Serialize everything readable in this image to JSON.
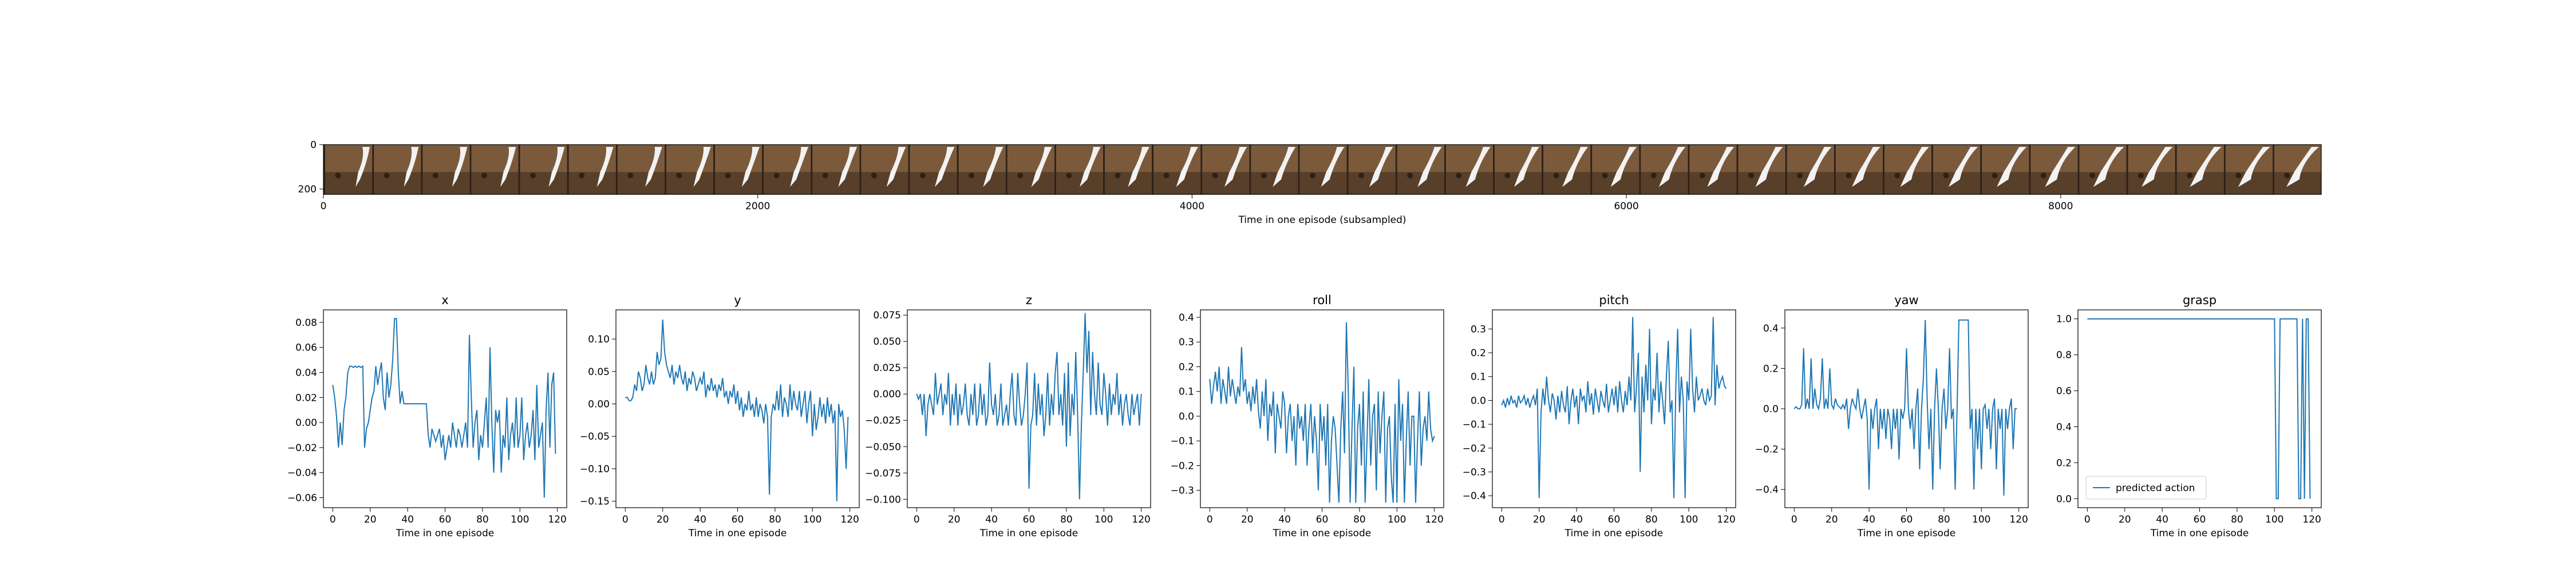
{
  "frame_strip": {
    "xlabel": "Time in one episode (subsampled)",
    "x_ticks": [
      0,
      2000,
      4000,
      6000,
      8000
    ],
    "y_ticks": [
      0,
      200
    ],
    "x_range": [
      0,
      9200
    ],
    "y_range": [
      0,
      224
    ],
    "frame_count": 41,
    "frame_colors": {
      "wood": "#7b5a3b",
      "wood_dark": "#4a3322",
      "arm": "#f2f2f2",
      "shadow": "#2e2118"
    }
  },
  "line_color": "#1f77b4",
  "chart_data": [
    {
      "type": "line",
      "title": "x",
      "xlabel": "Time in one episode",
      "xlim": [
        -5,
        125
      ],
      "ylim": [
        -0.068,
        0.09
      ],
      "x_ticks": [
        0,
        20,
        40,
        60,
        80,
        100,
        120
      ],
      "y_ticks": [
        0.08,
        0.06,
        0.04,
        0.02,
        0.0,
        -0.02,
        -0.04,
        -0.06
      ],
      "y_tick_labels": [
        "0.08",
        "0.06",
        "0.04",
        "0.02",
        "0.00",
        "−0.02",
        "−0.04",
        "−0.06"
      ],
      "values": [
        0.03,
        0.02,
        0.005,
        -0.02,
        0.0,
        -0.018,
        0.01,
        0.02,
        0.04,
        0.045,
        0.045,
        0.044,
        0.045,
        0.044,
        0.045,
        0.044,
        0.045,
        -0.02,
        -0.005,
        0.0,
        0.01,
        0.02,
        0.025,
        0.045,
        0.03,
        0.04,
        0.048,
        0.02,
        0.01,
        0.04,
        0.02,
        0.03,
        0.05,
        0.083,
        0.083,
        0.04,
        0.015,
        0.025,
        0.015,
        0.015,
        0.015,
        0.015,
        0.015,
        0.015,
        0.015,
        0.015,
        0.015,
        0.015,
        0.015,
        0.015,
        0.015,
        -0.01,
        -0.02,
        -0.005,
        -0.01,
        -0.015,
        -0.01,
        -0.005,
        -0.02,
        -0.01,
        -0.03,
        -0.02,
        -0.01,
        -0.02,
        0.0,
        -0.01,
        -0.02,
        -0.005,
        -0.01,
        -0.02,
        -0.01,
        0.0,
        -0.02,
        0.07,
        0.02,
        -0.02,
        0.0,
        0.01,
        -0.03,
        -0.01,
        -0.02,
        0.0,
        0.02,
        -0.02,
        0.06,
        0.0,
        -0.04,
        0.01,
        0.0,
        0.01,
        -0.04,
        -0.01,
        -0.02,
        0.02,
        -0.03,
        -0.01,
        0.0,
        -0.02,
        0.02,
        -0.02,
        -0.01,
        0.02,
        -0.03,
        -0.01,
        0.0,
        -0.02,
        -0.01,
        0.01,
        -0.03,
        0.03,
        -0.02,
        -0.01,
        0.0,
        -0.06,
        0.01,
        0.04,
        -0.02,
        0.03,
        0.04,
        -0.025
      ]
    },
    {
      "type": "line",
      "title": "y",
      "xlabel": "Time in one episode",
      "xlim": [
        -5,
        125
      ],
      "ylim": [
        -0.16,
        0.145
      ],
      "x_ticks": [
        0,
        20,
        40,
        60,
        80,
        100,
        120
      ],
      "y_ticks": [
        0.1,
        0.05,
        0.0,
        -0.05,
        -0.1,
        -0.15
      ],
      "y_tick_labels": [
        "0.10",
        "0.05",
        "0.00",
        "−0.05",
        "−0.10",
        "−0.15"
      ],
      "values": [
        0.01,
        0.01,
        0.005,
        0.005,
        0.01,
        0.03,
        0.02,
        0.05,
        0.04,
        0.02,
        0.03,
        0.06,
        0.04,
        0.03,
        0.05,
        0.03,
        0.04,
        0.08,
        0.06,
        0.07,
        0.13,
        0.08,
        0.06,
        0.05,
        0.04,
        0.06,
        0.03,
        0.05,
        0.04,
        0.06,
        0.04,
        0.03,
        0.05,
        0.02,
        0.04,
        0.03,
        0.05,
        0.04,
        0.02,
        0.03,
        0.04,
        0.03,
        0.05,
        0.01,
        0.03,
        0.02,
        0.04,
        0.02,
        0.03,
        0.01,
        0.03,
        0.02,
        0.04,
        0.01,
        0.02,
        0.0,
        0.02,
        0.01,
        0.03,
        0.0,
        0.02,
        -0.01,
        0.01,
        -0.02,
        0.0,
        -0.01,
        0.02,
        -0.01,
        0.0,
        -0.02,
        0.01,
        -0.02,
        0.0,
        -0.01,
        -0.03,
        0.0,
        -0.02,
        -0.14,
        -0.02,
        0.0,
        -0.01,
        0.02,
        -0.01,
        0.03,
        -0.02,
        0.01,
        0.0,
        -0.02,
        0.03,
        -0.01,
        0.02,
        0.0,
        -0.01,
        0.02,
        -0.02,
        0.0,
        0.02,
        -0.03,
        0.0,
        0.02,
        -0.05,
        0.0,
        -0.04,
        -0.02,
        0.01,
        -0.02,
        0.0,
        -0.03,
        0.01,
        -0.02,
        0.0,
        -0.03,
        -0.01,
        -0.15,
        0.0,
        -0.02,
        -0.01,
        -0.04,
        -0.1,
        -0.02
      ]
    },
    {
      "type": "line",
      "title": "z",
      "xlabel": "Time in one episode",
      "xlim": [
        -5,
        125
      ],
      "ylim": [
        -0.108,
        0.08
      ],
      "x_ticks": [
        0,
        20,
        40,
        60,
        80,
        100,
        120
      ],
      "y_ticks": [
        0.075,
        0.05,
        0.025,
        0.0,
        -0.025,
        -0.05,
        -0.075,
        -0.1
      ],
      "y_tick_labels": [
        "0.075",
        "0.050",
        "0.025",
        "0.000",
        "−0.025",
        "−0.050",
        "−0.075",
        "−0.100"
      ],
      "values": [
        0.0,
        -0.005,
        0.0,
        -0.02,
        0.0,
        -0.04,
        -0.01,
        0.0,
        -0.01,
        -0.02,
        0.02,
        -0.01,
        0.0,
        0.01,
        -0.02,
        0.0,
        -0.01,
        0.02,
        -0.03,
        0.0,
        -0.02,
        0.01,
        -0.03,
        0.0,
        -0.02,
        -0.01,
        0.01,
        -0.02,
        -0.03,
        0.0,
        -0.02,
        0.01,
        -0.03,
        -0.02,
        0.01,
        -0.02,
        0.0,
        -0.03,
        -0.02,
        0.03,
        -0.01,
        -0.02,
        0.0,
        -0.03,
        -0.02,
        0.01,
        -0.03,
        -0.02,
        -0.01,
        -0.03,
        0.0,
        0.02,
        -0.02,
        -0.03,
        0.02,
        -0.01,
        -0.03,
        -0.02,
        0.0,
        0.03,
        -0.09,
        -0.03,
        -0.02,
        0.02,
        -0.03,
        0.01,
        -0.02,
        0.0,
        -0.04,
        -0.02,
        0.02,
        -0.03,
        0.0,
        -0.02,
        0.02,
        0.04,
        -0.02,
        0.0,
        -0.03,
        0.02,
        -0.05,
        0.03,
        -0.04,
        0.0,
        -0.02,
        0.04,
        -0.02,
        -0.1,
        -0.03,
        0.02,
        0.077,
        0.02,
        0.06,
        -0.02,
        0.04,
        0.0,
        -0.02,
        0.03,
        -0.01,
        -0.02,
        0.02,
        0.0,
        -0.03,
        0.01,
        -0.02,
        0.0,
        -0.01,
        0.02,
        -0.02,
        0.0,
        -0.03,
        -0.01,
        0.0,
        -0.02,
        -0.03,
        0.0,
        -0.02,
        -0.01,
        0.0,
        -0.03,
        0.0
      ]
    },
    {
      "type": "line",
      "title": "roll",
      "xlabel": "Time in one episode",
      "xlim": [
        -5,
        125
      ],
      "ylim": [
        -0.37,
        0.43
      ],
      "x_ticks": [
        0,
        20,
        40,
        60,
        80,
        100,
        120
      ],
      "y_ticks": [
        0.4,
        0.3,
        0.2,
        0.1,
        0.0,
        -0.1,
        -0.2,
        -0.3
      ],
      "y_tick_labels": [
        "0.4",
        "0.3",
        "0.2",
        "0.1",
        "0.0",
        "−0.1",
        "−0.2",
        "−0.3"
      ],
      "values": [
        0.15,
        0.05,
        0.12,
        0.18,
        0.1,
        0.2,
        0.05,
        0.15,
        0.1,
        0.05,
        0.2,
        0.08,
        0.15,
        0.1,
        0.05,
        0.12,
        0.08,
        0.28,
        0.1,
        0.15,
        0.05,
        0.1,
        0.02,
        0.12,
        0.05,
        0.15,
        0.02,
        -0.05,
        0.1,
        0.0,
        0.15,
        -0.1,
        0.05,
        0.0,
        0.1,
        -0.15,
        0.05,
        0.0,
        -0.05,
        0.1,
        0.05,
        -0.15,
        0.0,
        0.05,
        -0.1,
        0.0,
        -0.2,
        0.05,
        -0.05,
        0.0,
        -0.1,
        0.05,
        -0.2,
        -0.05,
        0.05,
        -0.15,
        0.0,
        -0.1,
        -0.3,
        0.05,
        -0.1,
        0.0,
        -0.2,
        0.05,
        -0.35,
        -0.1,
        0.0,
        -0.05,
        -0.2,
        -0.35,
        -0.05,
        0.1,
        -0.15,
        0.38,
        0.1,
        -0.35,
        -0.05,
        0.2,
        -0.35,
        -0.05,
        0.05,
        -0.2,
        0.1,
        -0.35,
        -0.1,
        0.15,
        -0.2,
        0.0,
        0.05,
        -0.3,
        0.1,
        -0.15,
        0.0,
        0.1,
        -0.35,
        -0.05,
        0.0,
        -0.25,
        -0.35,
        0.05,
        -0.35,
        0.15,
        -0.1,
        0.05,
        -0.35,
        -0.1,
        0.1,
        -0.2,
        0.0,
        0.0,
        -0.35,
        -0.1,
        0.1,
        -0.2,
        -0.05,
        0.0,
        -0.1,
        0.1,
        -0.05,
        -0.1,
        -0.08
      ]
    },
    {
      "type": "line",
      "title": "pitch",
      "xlabel": "Time in one episode",
      "xlim": [
        -5,
        125
      ],
      "ylim": [
        -0.45,
        0.38
      ],
      "x_ticks": [
        0,
        20,
        40,
        60,
        80,
        100,
        120
      ],
      "y_ticks": [
        0.3,
        0.2,
        0.1,
        0.0,
        -0.1,
        -0.2,
        -0.3,
        -0.4
      ],
      "y_tick_labels": [
        "0.3",
        "0.2",
        "0.1",
        "0.0",
        "−0.1",
        "−0.2",
        "−0.3",
        "−0.4"
      ],
      "values": [
        -0.02,
        0.0,
        -0.03,
        0.01,
        -0.02,
        0.02,
        -0.01,
        0.0,
        -0.03,
        0.02,
        -0.01,
        0.0,
        0.02,
        -0.02,
        0.01,
        -0.03,
        0.0,
        0.02,
        -0.02,
        0.05,
        -0.41,
        -0.05,
        0.05,
        -0.02,
        0.1,
        0.0,
        -0.05,
        0.03,
        0.0,
        -0.08,
        0.02,
        -0.05,
        0.04,
        -0.02,
        -0.05,
        0.06,
        -0.1,
        0.0,
        0.05,
        -0.03,
        0.02,
        -0.1,
        0.05,
        0.0,
        0.02,
        -0.05,
        0.08,
        -0.02,
        0.03,
        -0.06,
        0.05,
        0.0,
        -0.05,
        0.04,
        0.0,
        -0.03,
        0.07,
        -0.05,
        0.0,
        0.05,
        -0.02,
        0.06,
        -0.05,
        0.08,
        0.0,
        -0.05,
        0.04,
        -0.02,
        0.1,
        0.0,
        0.35,
        -0.05,
        0.05,
        0.2,
        -0.3,
        0.1,
        -0.05,
        0.15,
        0.0,
        0.3,
        -0.1,
        0.05,
        0.0,
        0.2,
        -0.05,
        0.08,
        0.0,
        -0.1,
        0.1,
        0.25,
        -0.05,
        0.0,
        -0.41,
        0.05,
        0.3,
        -0.05,
        0.1,
        0.0,
        -0.41,
        0.08,
        0.0,
        0.3,
        0.05,
        -0.05,
        0.1,
        0.0,
        0.02,
        0.05,
        0.0,
        -0.02,
        0.05,
        0.0,
        0.02,
        0.35,
        -0.02,
        0.15,
        0.05,
        0.08,
        0.1,
        0.06,
        0.05
      ]
    },
    {
      "type": "line",
      "title": "yaw",
      "xlabel": "Time in one episode",
      "xlim": [
        -5,
        125
      ],
      "ylim": [
        -0.49,
        0.49
      ],
      "x_ticks": [
        0,
        20,
        40,
        60,
        80,
        100,
        120
      ],
      "y_ticks": [
        0.4,
        0.2,
        0.0,
        -0.2,
        -0.4
      ],
      "y_tick_labels": [
        "0.4",
        "0.2",
        "0.0",
        "−0.2",
        "−0.4"
      ],
      "values": [
        0.0,
        0.01,
        0.0,
        0.0,
        0.02,
        0.3,
        0.0,
        0.05,
        0.0,
        0.25,
        0.0,
        0.1,
        0.02,
        0.0,
        0.05,
        0.25,
        0.0,
        0.05,
        0.0,
        0.2,
        0.02,
        0.0,
        0.05,
        0.02,
        0.01,
        0.0,
        0.02,
        0.0,
        0.05,
        -0.1,
        0.0,
        0.05,
        0.02,
        0.0,
        0.1,
        0.0,
        -0.05,
        0.0,
        0.05,
        -0.05,
        -0.4,
        0.0,
        -0.1,
        0.0,
        0.05,
        -0.2,
        0.0,
        -0.1,
        0.0,
        -0.15,
        0.0,
        -0.05,
        -0.2,
        0.0,
        -0.1,
        0.0,
        -0.25,
        0.0,
        -0.05,
        0.0,
        0.3,
        0.0,
        -0.1,
        0.0,
        -0.2,
        0.0,
        0.1,
        -0.3,
        0.0,
        0.15,
        0.44,
        0.05,
        -0.2,
        0.0,
        -0.4,
        0.0,
        0.2,
        0.0,
        -0.3,
        0.0,
        0.1,
        -0.1,
        0.0,
        0.3,
        -0.05,
        0.0,
        -0.4,
        0.0,
        0.44,
        0.44,
        0.44,
        0.44,
        0.44,
        0.44,
        -0.1,
        0.0,
        -0.4,
        0.0,
        -0.2,
        0.0,
        -0.3,
        0.0,
        0.02,
        -0.1,
        0.0,
        -0.2,
        0.0,
        0.05,
        -0.3,
        0.0,
        -0.1,
        0.0,
        -0.43,
        0.0,
        -0.1,
        0.0,
        0.05,
        -0.2,
        0.0,
        0.0
      ]
    },
    {
      "type": "line",
      "title": "grasp",
      "xlabel": "Time in one episode",
      "xlim": [
        -5,
        125
      ],
      "ylim": [
        -0.05,
        1.05
      ],
      "x_ticks": [
        0,
        20,
        40,
        60,
        80,
        100,
        120
      ],
      "y_ticks": [
        1.0,
        0.8,
        0.6,
        0.4,
        0.2,
        0.0
      ],
      "y_tick_labels": [
        "1.0",
        "0.8",
        "0.6",
        "0.4",
        "0.2",
        "0.0"
      ],
      "legend": "predicted action",
      "legend_position": "lower-left",
      "values": [
        1,
        1,
        1,
        1,
        1,
        1,
        1,
        1,
        1,
        1,
        1,
        1,
        1,
        1,
        1,
        1,
        1,
        1,
        1,
        1,
        1,
        1,
        1,
        1,
        1,
        1,
        1,
        1,
        1,
        1,
        1,
        1,
        1,
        1,
        1,
        1,
        1,
        1,
        1,
        1,
        1,
        1,
        1,
        1,
        1,
        1,
        1,
        1,
        1,
        1,
        1,
        1,
        1,
        1,
        1,
        1,
        1,
        1,
        1,
        1,
        1,
        1,
        1,
        1,
        1,
        1,
        1,
        1,
        1,
        1,
        1,
        1,
        1,
        1,
        1,
        1,
        1,
        1,
        1,
        1,
        1,
        1,
        1,
        1,
        1,
        1,
        1,
        1,
        1,
        1,
        1,
        1,
        1,
        1,
        1,
        1,
        1,
        1,
        1,
        1,
        1,
        0,
        0,
        1,
        1,
        1,
        1,
        1,
        1,
        1,
        1,
        1,
        1,
        0,
        0,
        1,
        0,
        1,
        1,
        0
      ]
    }
  ]
}
